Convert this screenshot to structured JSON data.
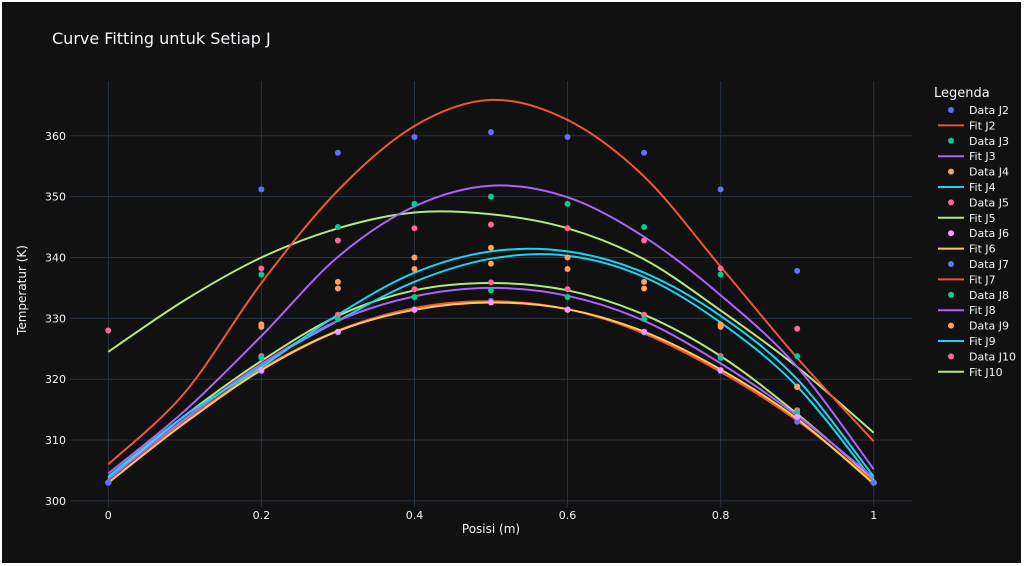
{
  "chart_data": {
    "type": "scatter",
    "title": "Curve Fitting untuk Setiap J",
    "xlabel": "Posisi (m)",
    "ylabel": "Temperatur (K)",
    "xlim": [
      -0.05,
      1.05
    ],
    "ylim": [
      299,
      369
    ],
    "xticks": [
      0,
      0.2,
      0.4,
      0.6,
      0.8,
      1
    ],
    "xtick_labels": [
      "0",
      "0.2",
      "0.4",
      "0.6",
      "0.8",
      "1"
    ],
    "yticks": [
      300,
      310,
      320,
      330,
      340,
      350,
      360
    ],
    "ytick_labels": [
      "300",
      "310",
      "320",
      "330",
      "340",
      "350",
      "360"
    ],
    "grid": true,
    "legend_title": "Legenda",
    "legend_position": "right",
    "x": [
      0,
      0.1,
      0.2,
      0.3,
      0.4,
      0.5,
      0.6,
      0.7,
      0.8,
      0.9,
      1.0
    ],
    "series": [
      {
        "j": "J2",
        "data_name": "Data J2",
        "fit_name": "Fit J2",
        "data_color": "#636efa",
        "fit_color": "#ef553b",
        "data": [
          303,
          null,
          351.2,
          357.2,
          359.8,
          360.6,
          359.8,
          357.2,
          351.2,
          337.8,
          303
        ],
        "fit": [
          306,
          317.8,
          335.8,
          351.0,
          361.6,
          365.9,
          362.6,
          353.3,
          338.5,
          323.5,
          309.8
        ]
      },
      {
        "j": "J3",
        "data_name": "Data J3",
        "fit_name": "Fit J3",
        "data_color": "#00cc96",
        "fit_color": "#ab63fa",
        "data": [
          303,
          null,
          337.2,
          345.0,
          348.8,
          350.0,
          348.8,
          345.0,
          337.2,
          323.8,
          303
        ],
        "fit": [
          304.5,
          314.8,
          327.1,
          340.1,
          348.4,
          351.8,
          349.9,
          343.4,
          333.8,
          322.0,
          305.2
        ]
      },
      {
        "j": "J4",
        "data_name": "Data J4",
        "fit_name": "Fit J4",
        "data_color": "#ffa15a",
        "fit_color": "#19d3f3",
        "data": [
          303,
          null,
          329.0,
          336.0,
          340.0,
          341.6,
          340.0,
          336.0,
          329.0,
          318.8,
          303
        ],
        "fit": [
          304,
          314.0,
          322.0,
          330.6,
          337.5,
          341.0,
          341.0,
          337.5,
          330.4,
          320.0,
          304.0
        ]
      },
      {
        "j": "J5",
        "data_name": "Data J5",
        "fit_name": "Fit J5",
        "data_color": "#ff6692",
        "fit_color": "#b6e880",
        "data": [
          328,
          null,
          338.2,
          342.8,
          344.8,
          345.4,
          344.8,
          342.8,
          338.2,
          328.3,
          303
        ],
        "fit": [
          324.5,
          333.0,
          340.0,
          344.8,
          347.4,
          347.1,
          344.8,
          339.7,
          331.3,
          322.0,
          311.2
        ]
      },
      {
        "j": "J6",
        "data_name": "Data J6",
        "fit_name": "Fit J6",
        "data_color": "#ff97ff",
        "fit_color": "#fecb52",
        "data": [
          303,
          null,
          321.5,
          327.8,
          331.4,
          332.6,
          331.4,
          327.8,
          321.5,
          313.8,
          303
        ],
        "fit": [
          303,
          312.8,
          321.5,
          327.9,
          331.4,
          332.6,
          331.5,
          327.8,
          321.6,
          313.5,
          302.8
        ]
      },
      {
        "j": "J7",
        "data_name": "Data J7",
        "fit_name": "Fit J7",
        "data_color": "#636efa",
        "fit_color": "#ef553b",
        "data": [
          303,
          null,
          321.3,
          327.7,
          331.5,
          332.9,
          331.5,
          327.7,
          321.3,
          313.0,
          303
        ],
        "fit": [
          303,
          313.0,
          321.7,
          328.0,
          331.7,
          332.8,
          331.5,
          327.5,
          321.2,
          313.2,
          303.2
        ]
      },
      {
        "j": "J8",
        "data_name": "Data J8",
        "fit_name": "Fit J8",
        "data_color": "#00cc96",
        "fit_color": "#ab63fa",
        "data": [
          303,
          null,
          323.5,
          329.9,
          333.5,
          334.6,
          333.5,
          329.9,
          323.5,
          314.5,
          303
        ],
        "fit": [
          303.5,
          313.5,
          322.5,
          329.6,
          333.6,
          335.0,
          333.7,
          329.6,
          322.6,
          314.0,
          303.8
        ]
      },
      {
        "j": "J9",
        "data_name": "Data J9",
        "fit_name": "Fit J9",
        "data_color": "#ffa15a",
        "fit_color": "#19d3f3",
        "data": [
          303,
          null,
          328.6,
          334.9,
          338.1,
          339.0,
          338.1,
          334.9,
          328.6,
          318.7,
          303
        ],
        "fit": [
          303.6,
          313.4,
          322.4,
          329.6,
          336.0,
          339.8,
          340.3,
          336.8,
          329.3,
          318.8,
          303.2
        ]
      },
      {
        "j": "J10",
        "data_name": "Data J10",
        "fit_name": "Fit J10",
        "data_color": "#ff6692",
        "fit_color": "#b6e880",
        "data": [
          303,
          null,
          323.8,
          330.6,
          334.8,
          335.9,
          334.8,
          330.6,
          323.8,
          314.9,
          303
        ],
        "fit": [
          303.8,
          314.0,
          323.0,
          330.4,
          334.6,
          335.8,
          334.6,
          330.6,
          323.8,
          314.3,
          303.5
        ]
      }
    ]
  }
}
